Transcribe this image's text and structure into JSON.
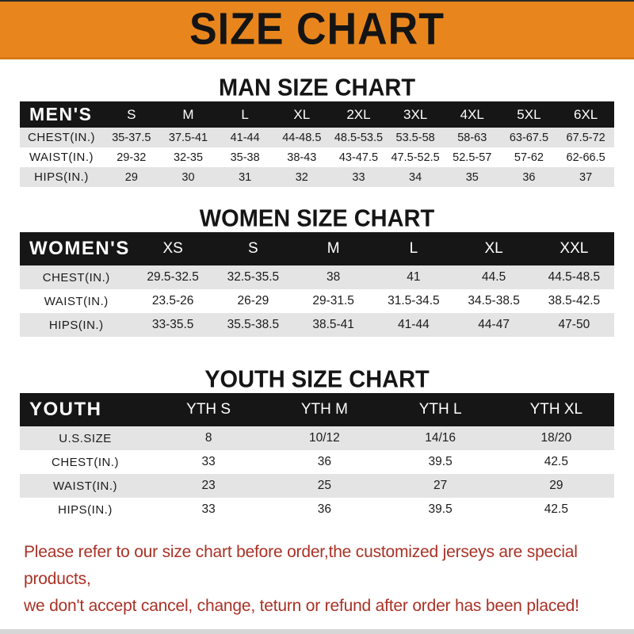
{
  "banner": {
    "title": "SIZE CHART"
  },
  "colors": {
    "banner_bg": "#E8861D",
    "header_bar": "#161616",
    "row_stripe": "#E4E4E4",
    "disclaimer_red": "#A93226"
  },
  "sections": [
    {
      "heading": "MAN SIZE CHART",
      "table": {
        "header_label": "MEN'S",
        "columns": [
          "S",
          "M",
          "L",
          "XL",
          "2XL",
          "3XL",
          "4XL",
          "5XL",
          "6XL"
        ],
        "rows": [
          {
            "label": "CHEST(IN.)",
            "values": [
              "35-37.5",
              "37.5-41",
              "41-44",
              "44-48.5",
              "48.5-53.5",
              "53.5-58",
              "58-63",
              "63-67.5",
              "67.5-72"
            ]
          },
          {
            "label": "WAIST(IN.)",
            "values": [
              "29-32",
              "32-35",
              "35-38",
              "38-43",
              "43-47.5",
              "47.5-52.5",
              "52.5-57",
              "57-62",
              "62-66.5"
            ]
          },
          {
            "label": "HIPS(IN.)",
            "values": [
              "29",
              "30",
              "31",
              "32",
              "33",
              "34",
              "35",
              "36",
              "37"
            ]
          }
        ]
      }
    },
    {
      "heading": "WOMEN SIZE CHART",
      "table": {
        "header_label": "WOMEN'S",
        "columns": [
          "XS",
          "S",
          "M",
          "L",
          "XL",
          "XXL"
        ],
        "rows": [
          {
            "label": "CHEST(IN.)",
            "values": [
              "29.5-32.5",
              "32.5-35.5",
              "38",
              "41",
              "44.5",
              "44.5-48.5"
            ]
          },
          {
            "label": "WAIST(IN.)",
            "values": [
              "23.5-26",
              "26-29",
              "29-31.5",
              "31.5-34.5",
              "34.5-38.5",
              "38.5-42.5"
            ]
          },
          {
            "label": "HIPS(IN.)",
            "values": [
              "33-35.5",
              "35.5-38.5",
              "38.5-41",
              "41-44",
              "44-47",
              "47-50"
            ]
          }
        ]
      }
    },
    {
      "heading": "YOUTH SIZE CHART",
      "table": {
        "header_label": "YOUTH",
        "columns": [
          "YTH S",
          "YTH M",
          "YTH L",
          "YTH XL"
        ],
        "rows": [
          {
            "label": "U.S.SIZE",
            "values": [
              "8",
              "10/12",
              "14/16",
              "18/20"
            ]
          },
          {
            "label": "CHEST(IN.)",
            "values": [
              "33",
              "36",
              "39.5",
              "42.5"
            ]
          },
          {
            "label": "WAIST(IN.)",
            "values": [
              "23",
              "25",
              "27",
              "29"
            ]
          },
          {
            "label": "HIPS(IN.)",
            "values": [
              "33",
              "36",
              "39.5",
              "42.5"
            ]
          }
        ]
      }
    }
  ],
  "footer": {
    "lines": [
      "Please refer to our size chart before order,the customized jerseys are special products,",
      "we don't accept cancel, change, teturn or refund after order has been placed!"
    ]
  }
}
